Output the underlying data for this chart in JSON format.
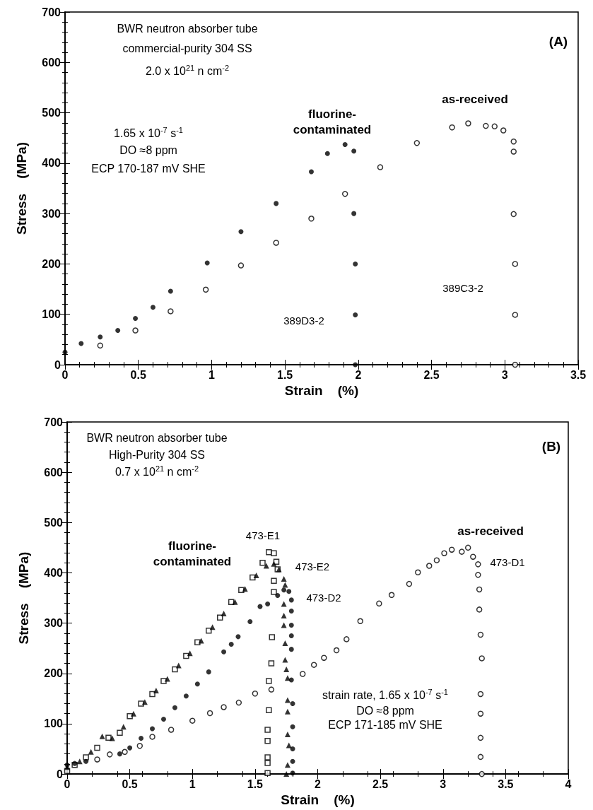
{
  "chart_data": [
    {
      "type": "scatter",
      "xlabel": "Strain    (%)",
      "ylabel": "Stress    (MPa)",
      "xlim": [
        0,
        3.5
      ],
      "xticks": [
        0,
        0.5,
        1,
        1.5,
        2,
        2.5,
        3,
        3.5
      ],
      "ylim": [
        0,
        700
      ],
      "yticks": [
        0,
        100,
        200,
        300,
        400,
        500,
        600,
        700
      ],
      "grid": false,
      "annotations": [
        "BWR neutron absorber tube",
        "commercial-purity 304 SS",
        "2.0 x 10$^{21}$ n cm$^{-2}$",
        "(A)",
        "1.65 x 10$^{-7}$ s$^{-1}$",
        "DO ≈8 ppm",
        "ECP 170-187 mV SHE",
        "fluorine-\ncontaminated",
        "as-received",
        "389D3-2",
        "389C3-2"
      ],
      "series": [
        {
          "color": "#000000",
          "marker": "circle",
          "x": [
            0,
            0.11,
            0.24,
            0.36,
            0.48,
            0.6,
            0.72,
            0.97,
            1.2,
            1.44,
            1.68,
            1.79,
            1.91,
            1.97,
            1.97,
            1.98,
            1.98,
            1.98
          ],
          "values": [
            25,
            42,
            55,
            68,
            92,
            114,
            146,
            202,
            264,
            320,
            383,
            419,
            437,
            424,
            300,
            200,
            99,
            0
          ]
        },
        {
          "color": "#000000",
          "marker": "circle-open",
          "x": [
            0.24,
            0.48,
            0.72,
            0.96,
            1.2,
            1.44,
            1.68,
            1.91,
            2.15,
            2.4,
            2.64,
            2.75,
            2.87,
            2.93,
            2.99,
            3.06,
            3.06,
            3.06,
            3.07,
            3.07,
            3.07
          ],
          "values": [
            38,
            68,
            106,
            149,
            197,
            242,
            290,
            339,
            392,
            440,
            471,
            479,
            474,
            473,
            465,
            443,
            423,
            299,
            200,
            99,
            0
          ]
        }
      ]
    },
    {
      "type": "scatter",
      "xlabel": "Strain    (%)",
      "ylabel": "Stress    (MPa)",
      "xlim": [
        0,
        4
      ],
      "xticks": [
        0,
        0.5,
        1,
        1.5,
        2,
        2.5,
        3,
        3.5,
        4
      ],
      "ylim": [
        0,
        700
      ],
      "yticks": [
        0,
        100,
        200,
        300,
        400,
        500,
        600,
        700
      ],
      "grid": false,
      "annotations": [
        "BWR neutron absorber tube",
        "High-Purity 304 SS",
        "0.7 x 10$^{21}$ n cm$^{-2}$",
        "(B)",
        "strain rate, 1.65 x 10$^{-7}$ s$^{-1}$",
        "DO ≈8 ppm",
        "ECP 171-185 mV SHE",
        "fluorine-\ncontaminated",
        "473-E1",
        "473-E2",
        "473-D2",
        "as-received",
        "473-D1"
      ],
      "series": [
        {
          "color": "#000000",
          "marker": "square-open",
          "x": [
            0,
            0.06,
            0.15,
            0.24,
            0.33,
            0.42,
            0.5,
            0.59,
            0.68,
            0.77,
            0.86,
            0.95,
            1.04,
            1.13,
            1.22,
            1.31,
            1.39,
            1.48,
            1.56,
            1.61,
            1.65,
            1.67,
            1.68,
            1.65,
            1.65,
            1.635,
            1.63,
            1.61,
            1.61,
            1.6,
            1.6,
            1.6,
            1.6,
            1.6
          ],
          "values": [
            6,
            18,
            33,
            52,
            72,
            82,
            115,
            140,
            159,
            185,
            208,
            235,
            262,
            285,
            311,
            342,
            366,
            391,
            420,
            441,
            439,
            422,
            407,
            384,
            362,
            272,
            220,
            185,
            127,
            88,
            66,
            33,
            22,
            2
          ]
        },
        {
          "color": "#000000",
          "marker": "triangle",
          "x": [
            0,
            0.1,
            0.19,
            0.28,
            0.36,
            0.45,
            0.53,
            0.62,
            0.71,
            0.8,
            0.89,
            0.98,
            1.07,
            1.16,
            1.25,
            1.34,
            1.42,
            1.51,
            1.59,
            1.65,
            1.69,
            1.73,
            1.74,
            1.73,
            1.73,
            1.73,
            1.74,
            1.74,
            1.75,
            1.76,
            1.76,
            1.76,
            1.76,
            1.77,
            1.76,
            1.75
          ],
          "values": [
            14,
            25,
            44,
            75,
            71,
            94,
            120,
            143,
            166,
            189,
            216,
            240,
            265,
            292,
            319,
            342,
            368,
            395,
            414,
            418,
            407,
            388,
            376,
            338,
            315,
            296,
            260,
            227,
            208,
            191,
            147,
            124,
            79,
            57,
            18,
            0
          ]
        },
        {
          "color": "#000000",
          "marker": "circle",
          "x": [
            0,
            0.06,
            0.15,
            0.24,
            0.33,
            0.42,
            0.5,
            0.59,
            0.68,
            0.77,
            0.86,
            0.95,
            1.04,
            1.13,
            1.25,
            1.31,
            1.365,
            1.46,
            1.54,
            1.6,
            1.68,
            1.73,
            1.77,
            1.79,
            1.79,
            1.79,
            1.79,
            1.79,
            1.79,
            1.8,
            1.8,
            1.8,
            1.8,
            1.8
          ],
          "values": [
            18,
            21,
            25,
            null,
            null,
            40,
            52,
            71,
            90,
            109,
            132,
            155,
            179,
            203,
            243,
            258,
            273,
            303,
            333,
            338,
            355,
            366,
            363,
            346,
            324,
            296,
            275,
            248,
            187,
            140,
            94,
            50,
            25,
            2
          ]
        },
        {
          "color": "#000000",
          "marker": "circle-open",
          "x": [
            0.24,
            0.34,
            0.46,
            0.58,
            0.68,
            0.83,
            1.0,
            1.14,
            1.25,
            1.37,
            1.5,
            1.63,
            1.88,
            1.97,
            2.05,
            2.15,
            2.23,
            2.34,
            2.49,
            2.59,
            2.73,
            2.8,
            2.89,
            2.95,
            3.01,
            3.07,
            3.15,
            3.2,
            3.24,
            3.28,
            3.28,
            3.29,
            3.29,
            3.3,
            3.31,
            3.3,
            3.3,
            3.3,
            3.3,
            3.31
          ],
          "values": [
            29,
            39,
            44,
            56,
            74,
            88,
            106,
            121,
            133,
            142,
            160,
            168,
            199,
            217,
            231,
            246,
            268,
            304,
            339,
            356,
            378,
            401,
            414,
            425,
            439,
            446,
            442,
            450,
            432,
            417,
            396,
            367,
            327,
            277,
            230,
            159,
            120,
            72,
            34,
            0
          ]
        }
      ]
    }
  ]
}
